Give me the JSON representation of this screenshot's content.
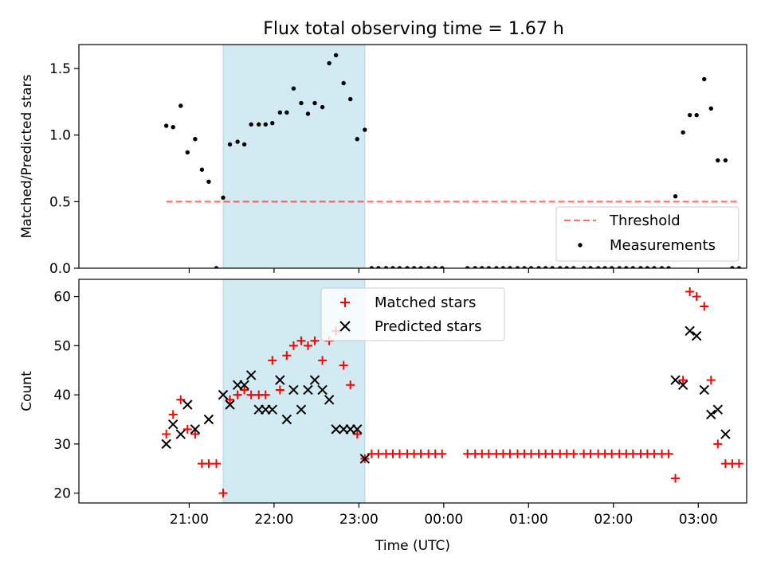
{
  "title": "Flux total observing time = 1.67 h",
  "colors": {
    "shade": "#add8e6",
    "threshold": "#ff0000",
    "matched": "#ff0000",
    "predicted": "#000000",
    "measurements": "#000000"
  },
  "chart_data": [
    {
      "type": "scatter",
      "ylabel": "Matched/Predicted stars",
      "ylim": [
        0,
        1.68
      ],
      "yticks": [
        0.0,
        0.5,
        1.0,
        1.5
      ],
      "ytick_labels": [
        "0.0",
        "0.5",
        "1.0",
        "1.5"
      ],
      "x_units": "hours after 20:00 UTC",
      "xlim": [
        19.7,
        27.57
      ],
      "shaded_interval": [
        21.4,
        23.07
      ],
      "threshold": {
        "name": "Threshold",
        "value": 0.5,
        "x_range": [
          20.73,
          27.48
        ],
        "style": "dashed"
      },
      "legend": {
        "placement": "lower-right",
        "entries": [
          "Threshold",
          "Measurements"
        ]
      },
      "series": [
        {
          "name": "Measurements",
          "x": [
            20.73,
            20.81,
            20.9,
            20.98,
            21.07,
            21.15,
            21.23,
            21.32,
            21.4,
            21.48,
            21.57,
            21.65,
            21.73,
            21.82,
            21.9,
            21.98,
            22.07,
            22.15,
            22.23,
            22.32,
            22.4,
            22.48,
            22.57,
            22.65,
            22.73,
            22.82,
            22.9,
            22.98,
            23.07,
            23.15,
            23.23,
            23.32,
            23.4,
            23.48,
            23.57,
            23.65,
            23.73,
            23.82,
            23.9,
            23.98,
            24.28,
            24.37,
            24.45,
            24.53,
            24.62,
            24.7,
            24.78,
            24.87,
            24.95,
            25.03,
            25.12,
            25.2,
            25.28,
            25.37,
            25.45,
            25.53,
            25.65,
            25.73,
            25.82,
            25.9,
            25.98,
            26.07,
            26.15,
            26.23,
            26.32,
            26.4,
            26.48,
            26.57,
            26.65,
            26.73,
            26.82,
            26.9,
            26.98,
            27.07,
            27.15,
            27.23,
            27.32,
            27.4,
            27.48
          ],
          "y": [
            1.07,
            1.06,
            1.22,
            0.87,
            0.97,
            0.74,
            0.65,
            0.0,
            0.53,
            0.93,
            0.95,
            0.93,
            1.08,
            1.08,
            1.08,
            1.09,
            1.17,
            1.17,
            1.35,
            1.24,
            1.16,
            1.24,
            1.21,
            1.54,
            1.6,
            1.39,
            1.27,
            0.97,
            1.04,
            0.0,
            0.0,
            0.0,
            0.0,
            0.0,
            0.0,
            0.0,
            0.0,
            0.0,
            0.0,
            0.0,
            0.0,
            0.0,
            0.0,
            0.0,
            0.0,
            0.0,
            0.0,
            0.0,
            0.0,
            0.0,
            0.0,
            0.0,
            0.0,
            0.0,
            0.0,
            0.0,
            0.0,
            0.0,
            0.0,
            0.0,
            0.0,
            0.0,
            0.0,
            0.0,
            0.0,
            0.0,
            0.0,
            0.0,
            0.0,
            0.54,
            1.02,
            1.15,
            1.15,
            1.42,
            1.2,
            0.81,
            0.81,
            0.0,
            0.0
          ]
        }
      ]
    },
    {
      "type": "scatter",
      "ylabel": "Count",
      "xlabel": "Time (UTC)",
      "ylim": [
        18,
        63.5
      ],
      "yticks": [
        20,
        30,
        40,
        50,
        60
      ],
      "ytick_labels": [
        "20",
        "30",
        "40",
        "50",
        "60"
      ],
      "x_units": "hours after 20:00 UTC",
      "xlim": [
        19.7,
        27.57
      ],
      "xticks": [
        21,
        22,
        23,
        24,
        25,
        26,
        27
      ],
      "xtick_labels": [
        "21:00",
        "22:00",
        "23:00",
        "00:00",
        "01:00",
        "02:00",
        "03:00"
      ],
      "shaded_interval": [
        21.4,
        23.07
      ],
      "legend": {
        "placement": "upper-center",
        "entries": [
          "Matched stars",
          "Predicted stars"
        ]
      },
      "series": [
        {
          "name": "Matched stars",
          "marker": "+",
          "x": [
            20.73,
            20.81,
            20.9,
            20.98,
            21.07,
            21.15,
            21.23,
            21.32,
            21.4,
            21.48,
            21.57,
            21.65,
            21.73,
            21.82,
            21.9,
            21.98,
            22.07,
            22.15,
            22.23,
            22.32,
            22.4,
            22.48,
            22.57,
            22.65,
            22.73,
            22.82,
            22.9,
            22.98,
            23.07,
            23.15,
            23.23,
            23.32,
            23.4,
            23.48,
            23.57,
            23.65,
            23.73,
            23.82,
            23.9,
            23.98,
            24.28,
            24.37,
            24.45,
            24.53,
            24.62,
            24.7,
            24.78,
            24.87,
            24.95,
            25.03,
            25.12,
            25.2,
            25.28,
            25.37,
            25.45,
            25.53,
            25.65,
            25.73,
            25.82,
            25.9,
            25.98,
            26.07,
            26.15,
            26.23,
            26.32,
            26.4,
            26.48,
            26.57,
            26.65,
            26.73,
            26.82,
            26.9,
            26.98,
            27.07,
            27.15,
            27.23,
            27.32,
            27.4,
            27.48
          ],
          "y": [
            32,
            36,
            39,
            33,
            32,
            26,
            26,
            26,
            20,
            39,
            40,
            41,
            40,
            40,
            40,
            47,
            41,
            48,
            50,
            51,
            50,
            51,
            47,
            51,
            53,
            46,
            42,
            32,
            27,
            28,
            28,
            28,
            28,
            28,
            28,
            28,
            28,
            28,
            28,
            28,
            28,
            28,
            28,
            28,
            28,
            28,
            28,
            28,
            28,
            28,
            28,
            28,
            28,
            28,
            28,
            28,
            28,
            28,
            28,
            28,
            28,
            28,
            28,
            28,
            28,
            28,
            28,
            28,
            28,
            23,
            43,
            61,
            60,
            58,
            43,
            30,
            26,
            26,
            26
          ]
        },
        {
          "name": "Predicted stars",
          "marker": "x",
          "x": [
            20.73,
            20.81,
            20.9,
            20.98,
            21.07,
            21.23,
            21.4,
            21.48,
            21.57,
            21.65,
            21.73,
            21.82,
            21.9,
            21.98,
            22.07,
            22.15,
            22.23,
            22.32,
            22.4,
            22.48,
            22.57,
            22.65,
            22.73,
            22.82,
            22.9,
            22.98,
            23.07,
            26.73,
            26.82,
            26.9,
            26.98,
            27.07,
            27.15,
            27.23,
            27.32
          ],
          "y": [
            30,
            34,
            32,
            38,
            33,
            35,
            40,
            38,
            42,
            42,
            44,
            37,
            37,
            37,
            43,
            35,
            41,
            37,
            41,
            43,
            41,
            39,
            33,
            33,
            33,
            33,
            27,
            43,
            42,
            53,
            52,
            41,
            36,
            37,
            32
          ]
        }
      ]
    }
  ]
}
